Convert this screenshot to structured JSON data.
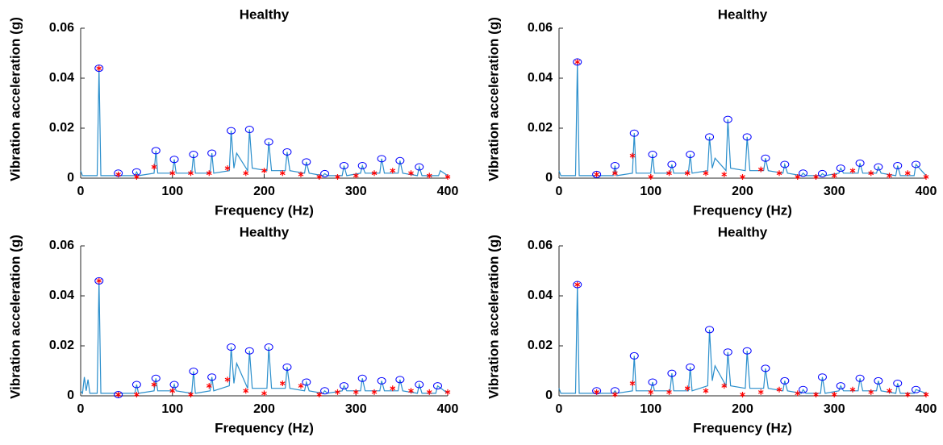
{
  "chart_data": [
    {
      "type": "line",
      "title": "Healthy",
      "xlabel": "Frequency (Hz)",
      "ylabel": "Vibration acceleration (g)",
      "xlim": [
        0,
        400
      ],
      "ylim": [
        0,
        0.06
      ],
      "xticks": [
        0,
        100,
        200,
        300,
        400
      ],
      "yticks": [
        0,
        0.02,
        0.04,
        0.06
      ],
      "series": [
        {
          "marker": "line",
          "color": "#2b8fcc",
          "x": [
            0,
            2,
            18,
            20,
            22,
            39,
            41,
            43,
            59,
            61,
            63,
            80,
            82,
            84,
            100,
            102,
            104,
            121,
            123,
            125,
            141,
            143,
            145,
            162,
            164,
            167,
            170,
            182,
            184,
            187,
            203,
            205,
            208,
            223,
            225,
            228,
            244,
            246,
            249,
            264,
            266,
            269,
            285,
            287,
            290,
            305,
            307,
            310,
            326,
            328,
            331,
            346,
            348,
            351,
            367,
            369,
            372,
            390,
            392,
            400
          ],
          "values": [
            0.003,
            0.001,
            0.001,
            0.044,
            0.001,
            0.001,
            0.002,
            0.001,
            0.001,
            0.0025,
            0.001,
            0.002,
            0.011,
            0.002,
            0.002,
            0.0075,
            0.002,
            0.002,
            0.0095,
            0.002,
            0.002,
            0.01,
            0.002,
            0.003,
            0.019,
            0.004,
            0.01,
            0.003,
            0.0195,
            0.004,
            0.003,
            0.0145,
            0.003,
            0.003,
            0.0105,
            0.003,
            0.002,
            0.0065,
            0.002,
            0.001,
            0.0018,
            0.001,
            0.001,
            0.005,
            0.001,
            0.002,
            0.005,
            0.002,
            0.002,
            0.0078,
            0.002,
            0.002,
            0.007,
            0.002,
            0.001,
            0.0045,
            0.001,
            0.001,
            0.003,
            0.001
          ]
        },
        {
          "marker": "circle",
          "color": "#0000ff",
          "x": [
            20,
            41,
            61,
            82,
            102,
            123,
            143,
            164,
            184,
            205,
            225,
            246,
            266,
            287,
            307,
            328,
            348,
            369
          ],
          "values": [
            0.044,
            0.002,
            0.0025,
            0.011,
            0.0075,
            0.0095,
            0.01,
            0.019,
            0.0195,
            0.0145,
            0.0105,
            0.0065,
            0.0018,
            0.005,
            0.005,
            0.0078,
            0.007,
            0.0045
          ]
        },
        {
          "marker": "asterisk",
          "color": "#ff0000",
          "x": [
            20,
            41,
            61,
            80,
            100,
            120,
            140,
            160,
            180,
            200,
            220,
            240,
            260,
            280,
            300,
            320,
            340,
            360,
            380,
            400
          ],
          "values": [
            0.044,
            0.0015,
            0.0005,
            0.0045,
            0.002,
            0.002,
            0.002,
            0.004,
            0.002,
            0.003,
            0.002,
            0.0015,
            0.0005,
            0.0005,
            0.001,
            0.002,
            0.003,
            0.002,
            0.001,
            0.0005
          ]
        }
      ]
    },
    {
      "type": "line",
      "title": "Healthy",
      "xlabel": "Frequency (Hz)",
      "ylabel": "Vibration acceleration (g)",
      "xlim": [
        0,
        400
      ],
      "ylim": [
        0,
        0.06
      ],
      "xticks": [
        0,
        100,
        200,
        300,
        400
      ],
      "yticks": [
        0,
        0.02,
        0.04,
        0.06
      ],
      "series": [
        {
          "marker": "line",
          "color": "#2b8fcc",
          "x": [
            0,
            2,
            18,
            20,
            22,
            39,
            41,
            43,
            59,
            61,
            63,
            80,
            82,
            84,
            100,
            102,
            104,
            121,
            123,
            125,
            141,
            143,
            145,
            162,
            164,
            167,
            170,
            182,
            184,
            187,
            203,
            205,
            208,
            223,
            225,
            228,
            244,
            246,
            249,
            264,
            266,
            269,
            285,
            287,
            290,
            305,
            307,
            310,
            326,
            328,
            331,
            346,
            348,
            351,
            367,
            369,
            372,
            387,
            389,
            400
          ],
          "values": [
            0.003,
            0.001,
            0.001,
            0.0465,
            0.001,
            0.001,
            0.0015,
            0.001,
            0.001,
            0.005,
            0.001,
            0.002,
            0.018,
            0.002,
            0.002,
            0.0095,
            0.002,
            0.002,
            0.0055,
            0.002,
            0.002,
            0.0095,
            0.002,
            0.003,
            0.0165,
            0.004,
            0.008,
            0.003,
            0.0235,
            0.004,
            0.003,
            0.0165,
            0.003,
            0.003,
            0.008,
            0.003,
            0.002,
            0.0055,
            0.002,
            0.001,
            0.002,
            0.001,
            0.001,
            0.0018,
            0.001,
            0.002,
            0.004,
            0.002,
            0.002,
            0.006,
            0.002,
            0.002,
            0.0045,
            0.002,
            0.001,
            0.005,
            0.001,
            0.001,
            0.0055,
            0.001
          ]
        },
        {
          "marker": "circle",
          "color": "#0000ff",
          "x": [
            20,
            41,
            61,
            82,
            102,
            123,
            143,
            164,
            184,
            205,
            225,
            246,
            266,
            287,
            307,
            328,
            348,
            369,
            389
          ],
          "values": [
            0.0465,
            0.0015,
            0.005,
            0.018,
            0.0095,
            0.0055,
            0.0095,
            0.0165,
            0.0235,
            0.0165,
            0.008,
            0.0055,
            0.002,
            0.0018,
            0.004,
            0.006,
            0.0045,
            0.005,
            0.0055
          ]
        },
        {
          "marker": "asterisk",
          "color": "#ff0000",
          "x": [
            20,
            41,
            61,
            80,
            100,
            120,
            140,
            160,
            180,
            200,
            220,
            240,
            260,
            280,
            300,
            320,
            340,
            360,
            380,
            400
          ],
          "values": [
            0.0465,
            0.0015,
            0.002,
            0.009,
            0.0005,
            0.002,
            0.002,
            0.002,
            0.0015,
            0.0005,
            0.0035,
            0.002,
            0.0005,
            0.0005,
            0.001,
            0.003,
            0.002,
            0.001,
            0.002,
            0.0005
          ]
        }
      ]
    },
    {
      "type": "line",
      "title": "Healthy",
      "xlabel": "Frequency (Hz)",
      "ylabel": "Vibration acceleration (g)",
      "xlim": [
        0,
        400
      ],
      "ylim": [
        0,
        0.06
      ],
      "xticks": [
        0,
        100,
        200,
        300,
        400
      ],
      "yticks": [
        0,
        0.02,
        0.04,
        0.06
      ],
      "series": [
        {
          "marker": "line",
          "color": "#2b8fcc",
          "x": [
            0,
            2,
            4,
            6,
            8,
            10,
            18,
            20,
            22,
            39,
            41,
            43,
            59,
            61,
            63,
            80,
            82,
            84,
            100,
            102,
            104,
            121,
            123,
            125,
            141,
            143,
            145,
            162,
            164,
            167,
            170,
            182,
            184,
            187,
            203,
            205,
            208,
            223,
            225,
            228,
            244,
            246,
            249,
            264,
            266,
            269,
            285,
            287,
            290,
            305,
            307,
            310,
            326,
            328,
            331,
            346,
            348,
            351,
            367,
            369,
            372,
            387,
            389,
            400
          ],
          "values": [
            0.002,
            0.001,
            0.0075,
            0.002,
            0.0065,
            0.001,
            0.001,
            0.046,
            0.001,
            0.001,
            0.0005,
            0.001,
            0.001,
            0.0045,
            0.001,
            0.002,
            0.007,
            0.002,
            0.002,
            0.0045,
            0.002,
            0.001,
            0.0098,
            0.001,
            0.002,
            0.0075,
            0.002,
            0.004,
            0.0195,
            0.005,
            0.013,
            0.003,
            0.018,
            0.003,
            0.003,
            0.0195,
            0.003,
            0.003,
            0.0115,
            0.003,
            0.002,
            0.0055,
            0.002,
            0.001,
            0.002,
            0.001,
            0.002,
            0.004,
            0.002,
            0.002,
            0.007,
            0.002,
            0.002,
            0.006,
            0.002,
            0.002,
            0.0065,
            0.002,
            0.001,
            0.0045,
            0.001,
            0.001,
            0.004,
            0.001
          ]
        },
        {
          "marker": "circle",
          "color": "#0000ff",
          "x": [
            20,
            41,
            61,
            82,
            102,
            123,
            143,
            164,
            184,
            205,
            225,
            246,
            266,
            287,
            307,
            328,
            348,
            369,
            389
          ],
          "values": [
            0.046,
            0.0005,
            0.0045,
            0.007,
            0.0045,
            0.0098,
            0.0075,
            0.0195,
            0.018,
            0.0195,
            0.0115,
            0.0055,
            0.002,
            0.004,
            0.007,
            0.006,
            0.0065,
            0.0045,
            0.004
          ]
        },
        {
          "marker": "asterisk",
          "color": "#ff0000",
          "x": [
            20,
            41,
            61,
            80,
            100,
            120,
            140,
            160,
            180,
            200,
            220,
            240,
            260,
            280,
            300,
            320,
            340,
            360,
            380,
            400
          ],
          "values": [
            0.046,
            0.0005,
            0.0005,
            0.0045,
            0.002,
            0.0005,
            0.004,
            0.0065,
            0.002,
            0.001,
            0.005,
            0.004,
            0.0005,
            0.0015,
            0.0015,
            0.0015,
            0.003,
            0.002,
            0.0015,
            0.0015
          ]
        }
      ]
    },
    {
      "type": "line",
      "title": "Healthy",
      "xlabel": "Frequency (Hz)",
      "ylabel": "Vibration acceleration (g)",
      "xlim": [
        0,
        400
      ],
      "ylim": [
        0,
        0.06
      ],
      "xticks": [
        0,
        100,
        200,
        300,
        400
      ],
      "yticks": [
        0,
        0.02,
        0.04,
        0.06
      ],
      "series": [
        {
          "marker": "line",
          "color": "#2b8fcc",
          "x": [
            0,
            2,
            18,
            20,
            22,
            39,
            41,
            43,
            59,
            61,
            63,
            80,
            82,
            84,
            100,
            102,
            104,
            121,
            123,
            125,
            141,
            143,
            145,
            162,
            164,
            167,
            170,
            182,
            184,
            187,
            203,
            205,
            208,
            223,
            225,
            228,
            244,
            246,
            249,
            264,
            266,
            269,
            285,
            287,
            290,
            305,
            307,
            310,
            326,
            328,
            331,
            346,
            348,
            351,
            367,
            369,
            372,
            387,
            389,
            400
          ],
          "values": [
            0.003,
            0.001,
            0.001,
            0.0445,
            0.001,
            0.001,
            0.002,
            0.001,
            0.001,
            0.002,
            0.001,
            0.002,
            0.016,
            0.002,
            0.002,
            0.0055,
            0.002,
            0.002,
            0.009,
            0.002,
            0.002,
            0.0115,
            0.002,
            0.004,
            0.0265,
            0.006,
            0.012,
            0.004,
            0.0175,
            0.004,
            0.003,
            0.018,
            0.003,
            0.003,
            0.011,
            0.003,
            0.002,
            0.006,
            0.002,
            0.001,
            0.0025,
            0.001,
            0.001,
            0.0075,
            0.001,
            0.002,
            0.004,
            0.002,
            0.002,
            0.007,
            0.002,
            0.002,
            0.006,
            0.002,
            0.001,
            0.005,
            0.001,
            0.001,
            0.0025,
            0.001
          ]
        },
        {
          "marker": "circle",
          "color": "#0000ff",
          "x": [
            20,
            41,
            61,
            82,
            102,
            123,
            143,
            164,
            184,
            205,
            225,
            246,
            266,
            287,
            307,
            328,
            348,
            369,
            389
          ],
          "values": [
            0.0445,
            0.002,
            0.002,
            0.016,
            0.0055,
            0.009,
            0.0115,
            0.0265,
            0.0175,
            0.018,
            0.011,
            0.006,
            0.0025,
            0.0075,
            0.004,
            0.007,
            0.006,
            0.005,
            0.0025
          ]
        },
        {
          "marker": "asterisk",
          "color": "#ff0000",
          "x": [
            20,
            41,
            61,
            80,
            100,
            120,
            140,
            160,
            180,
            200,
            220,
            240,
            260,
            280,
            300,
            320,
            340,
            360,
            380,
            400
          ],
          "values": [
            0.0445,
            0.0015,
            0.0005,
            0.005,
            0.0015,
            0.0015,
            0.003,
            0.002,
            0.004,
            0.0005,
            0.0015,
            0.0025,
            0.001,
            0.0005,
            0.0005,
            0.0025,
            0.0015,
            0.002,
            0.0005,
            0.0005
          ]
        }
      ]
    }
  ]
}
